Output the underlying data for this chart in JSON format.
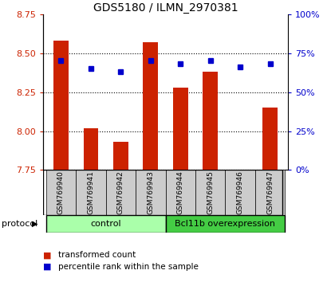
{
  "title": "GDS5180 / ILMN_2970381",
  "samples": [
    "GSM769940",
    "GSM769941",
    "GSM769942",
    "GSM769943",
    "GSM769944",
    "GSM769945",
    "GSM769946",
    "GSM769947"
  ],
  "transformed_counts": [
    8.58,
    8.02,
    7.93,
    8.57,
    8.28,
    8.38,
    7.75,
    8.15
  ],
  "percentile_ranks": [
    70,
    65,
    63,
    70,
    68,
    70,
    66,
    68
  ],
  "ylim_left": [
    7.75,
    8.75
  ],
  "ylim_right": [
    0,
    100
  ],
  "yticks_left": [
    7.75,
    8.0,
    8.25,
    8.5,
    8.75
  ],
  "yticks_right": [
    0,
    25,
    50,
    75,
    100
  ],
  "bar_color": "#cc2200",
  "dot_color": "#0000cc",
  "bar_width": 0.5,
  "groups": [
    {
      "label": "control",
      "indices": [
        0,
        1,
        2,
        3
      ],
      "color": "#aaffaa"
    },
    {
      "label": "Bcl11b overexpression",
      "indices": [
        4,
        5,
        6,
        7
      ],
      "color": "#44cc44"
    }
  ],
  "protocol_label": "protocol",
  "legend_bar_label": "transformed count",
  "legend_dot_label": "percentile rank within the sample",
  "tick_label_color_left": "#cc2200",
  "tick_label_color_right": "#0000cc",
  "bg_color_xticklabels": "#cccccc"
}
